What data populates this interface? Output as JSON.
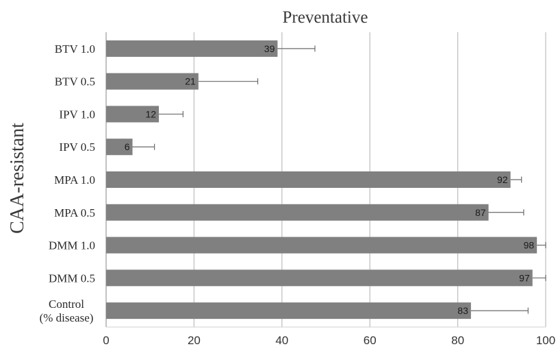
{
  "chart_data": {
    "type": "bar",
    "orientation": "horizontal",
    "title": "Preventative",
    "ylabel": "CAA-resistant",
    "xlabel": "",
    "xlim": [
      0,
      100
    ],
    "xticks": [
      0,
      20,
      40,
      60,
      80,
      100
    ],
    "grid": "vertical",
    "categories": [
      "BTV 1.0",
      "BTV 0.5",
      "IPV 1.0",
      "IPV 0.5",
      "MPA 1.0",
      "MPA 0.5",
      "DMM 1.0",
      "DMM 0.5",
      [
        "Control",
        "(% disease)"
      ]
    ],
    "values": [
      39,
      21,
      12,
      6,
      92,
      87,
      98,
      97,
      83
    ],
    "error_upper": [
      47.5,
      34.5,
      17.5,
      11,
      94.5,
      95,
      100,
      100,
      96
    ],
    "data_labels": [
      "39",
      "21",
      "12",
      "6",
      "92",
      "87",
      "98",
      "97",
      "83"
    ],
    "bar_color": "#808080",
    "grid_color": "#bdbdbd"
  }
}
